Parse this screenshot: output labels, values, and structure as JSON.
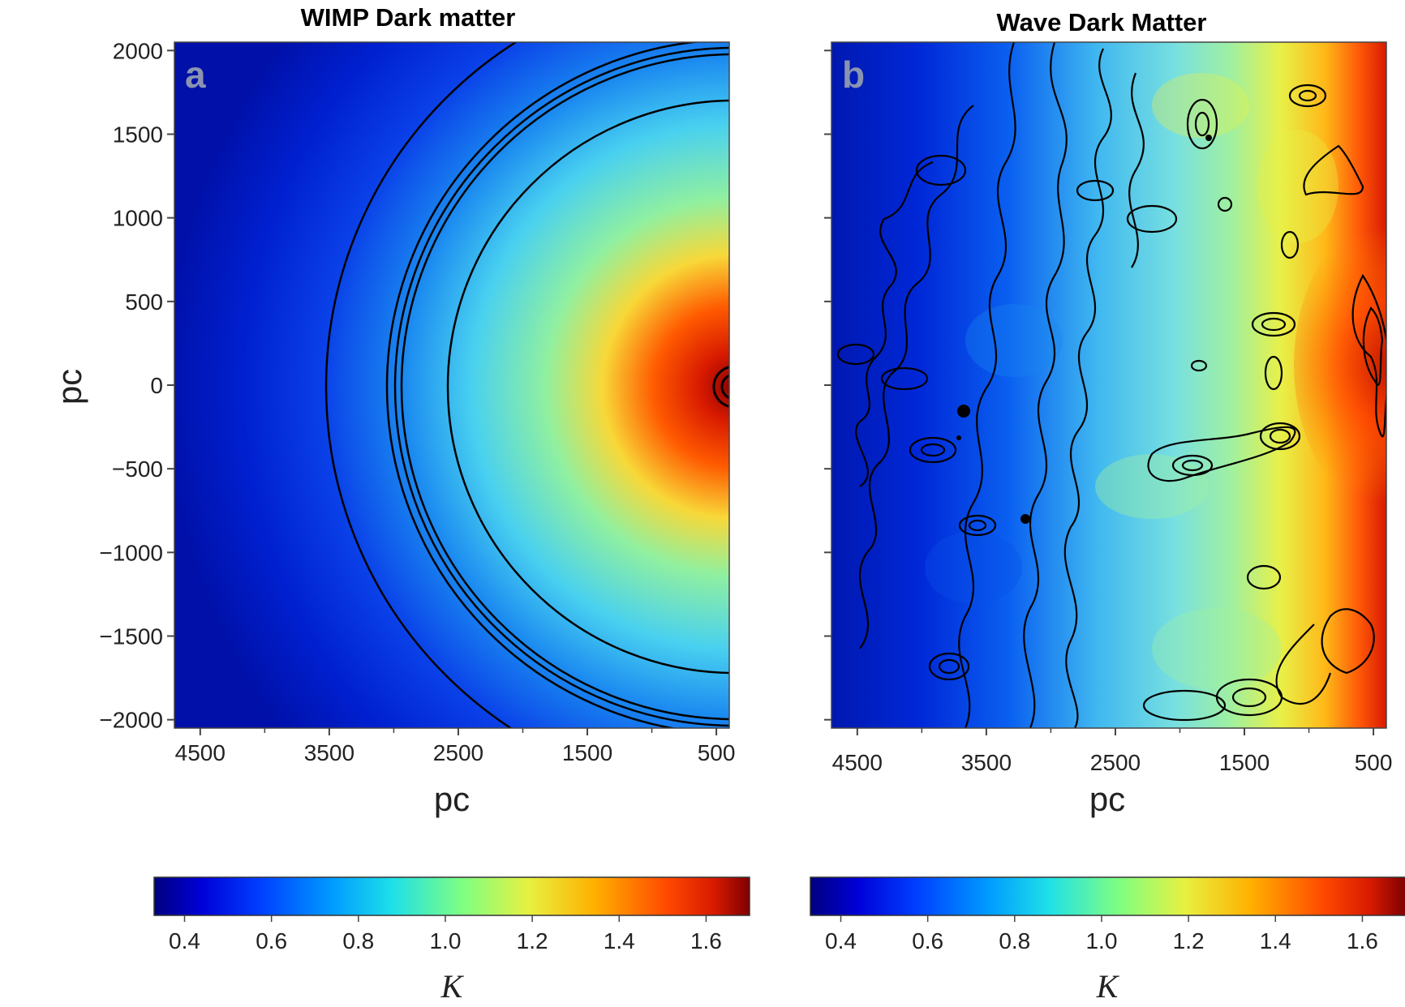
{
  "chart_data": [
    {
      "type": "heatmap",
      "title": "WIMP Dark matter",
      "panel_label": "a",
      "xlabel": "pc",
      "ylabel": "pc",
      "x_ticks": [
        "4500",
        "3500",
        "2500",
        "1500",
        "500"
      ],
      "y_ticks": [
        "2000",
        "1500",
        "1000",
        "500",
        "0",
        "−1000",
        "−1500",
        "−2000"
      ],
      "y_ticks_full": [
        "2000",
        "1500",
        "1000",
        "500",
        "0",
        "−500",
        "−1000",
        "−1500",
        "−2000"
      ],
      "xlim": [
        4700,
        400
      ],
      "ylim": [
        -2050,
        2050
      ],
      "x_reversed": true,
      "colormap": "jet",
      "field": "radially symmetric, centered near x=400 pc, y=0 pc",
      "peak_value": 1.6,
      "contours": "concentric arcs",
      "colorbar": {
        "label": "K",
        "range": [
          0.33,
          1.7
        ],
        "ticks": [
          "0.4",
          "0.6",
          "0.8",
          "1.0",
          "1.2",
          "1.4",
          "1.6"
        ]
      }
    },
    {
      "type": "heatmap",
      "title": "Wave Dark Matter",
      "panel_label": "b",
      "xlabel": "pc",
      "ylabel": "",
      "x_ticks": [
        "4500",
        "3500",
        "2500",
        "1500",
        "500"
      ],
      "xlim": [
        4700,
        400
      ],
      "ylim": [
        -2050,
        2050
      ],
      "x_reversed": true,
      "colormap": "jet",
      "field": "granular, fluctuating",
      "contours": "irregular closed loops",
      "colorbar": {
        "label": "K",
        "range": [
          0.33,
          1.7
        ],
        "ticks": [
          "0.4",
          "0.6",
          "0.8",
          "1.0",
          "1.2",
          "1.4",
          "1.6"
        ]
      }
    }
  ]
}
